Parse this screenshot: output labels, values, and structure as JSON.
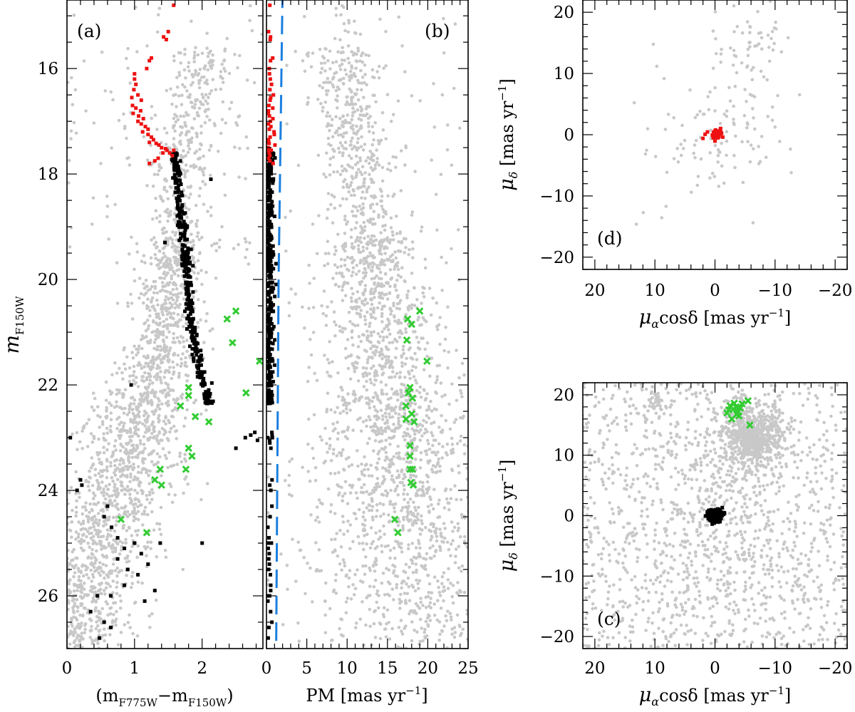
{
  "figure": {
    "colors": {
      "field": "#c8c8c8",
      "member_bright": "#ee1111",
      "member": "#000000",
      "selected": "#33cc33",
      "limit": "#1a7fe0"
    }
  },
  "chart_data": [
    {
      "id": "a",
      "type": "scatter",
      "tag": "(a)",
      "xlabel_main": "(m",
      "xlabel_sub1": "F775W",
      "xlabel_dash": "−m",
      "xlabel_sub2": "F150W",
      "xlabel_tail": ")",
      "ylabel_main": "m",
      "ylabel_sub": "F150W",
      "xlim": [
        0,
        2.9
      ],
      "ylim": [
        27,
        14.7
      ],
      "y_inverted": true,
      "xticks": [
        0,
        1,
        2
      ],
      "xtick_labels": [
        "0",
        "1",
        "2"
      ],
      "yticks": [
        16,
        18,
        20,
        22,
        24,
        26
      ],
      "ytick_labels": [
        "16",
        "18",
        "20",
        "22",
        "24",
        "26"
      ],
      "series": [
        {
          "role": "field",
          "color": "#c8c8c8",
          "points_approx": 2200,
          "segments": [
            [
              0.03,
              27.0,
              0.7,
              0.4
            ],
            [
              0.08,
              26.6,
              0.7,
              0.4
            ],
            [
              0.18,
              26.2,
              0.75,
              0.4
            ],
            [
              0.28,
              25.8,
              0.75,
              0.4
            ],
            [
              0.38,
              25.4,
              0.75,
              0.4
            ],
            [
              0.48,
              25.0,
              0.75,
              0.4
            ],
            [
              0.58,
              24.6,
              0.75,
              0.4
            ],
            [
              0.68,
              24.2,
              0.75,
              0.4
            ],
            [
              0.78,
              23.8,
              0.75,
              0.4
            ],
            [
              0.88,
              23.4,
              0.7,
              0.4
            ],
            [
              0.98,
              23.0,
              0.7,
              0.4
            ],
            [
              1.08,
              22.6,
              0.65,
              0.4
            ],
            [
              1.18,
              22.2,
              0.6,
              0.4
            ],
            [
              1.28,
              21.8,
              0.55,
              0.4
            ],
            [
              1.36,
              21.4,
              0.5,
              0.4
            ],
            [
              1.42,
              21.0,
              0.5,
              0.4
            ],
            [
              1.48,
              20.6,
              0.45,
              0.4
            ],
            [
              1.52,
              20.2,
              0.45,
              0.4
            ],
            [
              1.58,
              19.8,
              0.45,
              0.4
            ],
            [
              1.62,
              19.4,
              0.4,
              0.4
            ],
            [
              1.64,
              19.0,
              0.4,
              0.4
            ],
            [
              1.66,
              18.6,
              0.4,
              0.4
            ],
            [
              1.7,
              18.2,
              0.4,
              0.4
            ],
            [
              1.74,
              17.8,
              0.4,
              0.4
            ],
            [
              1.78,
              17.4,
              0.4,
              0.4
            ],
            [
              1.84,
              17.0,
              0.4,
              0.4
            ],
            [
              1.9,
              16.6,
              0.4,
              0.4
            ],
            [
              1.96,
              16.2,
              0.4,
              0.4
            ],
            [
              2.0,
              15.8,
              0.4,
              0.4
            ]
          ]
        },
        {
          "role": "members_bright",
          "color": "#ee1111",
          "points": [
            [
              1.58,
              14.8
            ],
            [
              1.5,
              15.3
            ],
            [
              1.43,
              15.4
            ],
            [
              1.47,
              15.45
            ],
            [
              1.25,
              15.8
            ],
            [
              1.22,
              15.85
            ],
            [
              1.18,
              16.0
            ],
            [
              1.0,
              16.1
            ],
            [
              1.0,
              16.2
            ],
            [
              1.02,
              16.3
            ],
            [
              0.99,
              16.4
            ],
            [
              1.05,
              16.5
            ],
            [
              0.96,
              16.55
            ],
            [
              1.1,
              16.6
            ],
            [
              0.97,
              16.7
            ],
            [
              1.02,
              16.75
            ],
            [
              1.09,
              16.8
            ],
            [
              0.98,
              16.85
            ],
            [
              1.06,
              16.9
            ],
            [
              1.13,
              16.95
            ],
            [
              1.05,
              17.0
            ],
            [
              1.1,
              17.05
            ],
            [
              1.16,
              17.1
            ],
            [
              1.2,
              17.15
            ],
            [
              1.12,
              17.2
            ],
            [
              1.2,
              17.25
            ],
            [
              1.25,
              17.3
            ],
            [
              1.28,
              17.35
            ],
            [
              1.22,
              17.4
            ],
            [
              1.32,
              17.42
            ],
            [
              1.36,
              17.45
            ],
            [
              1.4,
              17.5
            ],
            [
              1.46,
              17.52
            ],
            [
              1.48,
              17.55
            ],
            [
              1.42,
              17.6
            ],
            [
              1.52,
              17.6
            ],
            [
              1.56,
              17.65
            ],
            [
              1.35,
              17.7
            ],
            [
              1.3,
              17.75
            ],
            [
              1.22,
              17.8
            ],
            [
              1.58,
              17.55
            ]
          ]
        },
        {
          "role": "members",
          "color": "#000000",
          "points_approx": 330,
          "ridge": [
            [
              17.6,
              1.58
            ],
            [
              18.0,
              1.62
            ],
            [
              18.5,
              1.67
            ],
            [
              19.0,
              1.71
            ],
            [
              19.5,
              1.74
            ],
            [
              20.0,
              1.78
            ],
            [
              20.5,
              1.81
            ],
            [
              21.0,
              1.86
            ],
            [
              21.5,
              1.93
            ],
            [
              22.0,
              2.02
            ],
            [
              22.4,
              2.12
            ]
          ],
          "scatter_points": [
            [
              2.13,
              18.1
            ],
            [
              1.45,
              19.3
            ],
            [
              0.95,
              22.0
            ],
            [
              2.78,
              22.9
            ],
            [
              2.72,
              22.95
            ],
            [
              2.64,
              23.0
            ],
            [
              2.82,
              23.05
            ],
            [
              2.95,
              23.1
            ],
            [
              2.5,
              23.2
            ],
            [
              0.05,
              23.0
            ],
            [
              0.2,
              23.8
            ],
            [
              0.22,
              23.9
            ],
            [
              0.15,
              24.0
            ],
            [
              0.6,
              24.3
            ],
            [
              0.55,
              24.5
            ],
            [
              0.66,
              24.7
            ],
            [
              0.75,
              24.9
            ],
            [
              0.85,
              25.1
            ],
            [
              1.0,
              25.0
            ],
            [
              1.1,
              25.2
            ],
            [
              1.2,
              25.4
            ],
            [
              1.05,
              25.6
            ],
            [
              0.85,
              25.8
            ],
            [
              0.65,
              26.0
            ],
            [
              0.45,
              26.0
            ],
            [
              0.35,
              26.3
            ],
            [
              0.55,
              26.5
            ],
            [
              0.65,
              26.6
            ],
            [
              0.48,
              26.8
            ],
            [
              1.3,
              25.9
            ],
            [
              1.15,
              26.1
            ],
            [
              0.9,
              25.5
            ],
            [
              0.75,
              25.3
            ],
            [
              1.38,
              25.0
            ],
            [
              2.0,
              25.0
            ]
          ]
        },
        {
          "role": "selected",
          "color": "#33cc33",
          "points": [
            [
              2.5,
              20.6
            ],
            [
              2.37,
              20.75
            ],
            [
              2.45,
              21.2
            ],
            [
              2.85,
              21.55
            ],
            [
              1.8,
              22.05
            ],
            [
              1.8,
              22.2
            ],
            [
              2.65,
              22.15
            ],
            [
              1.68,
              22.4
            ],
            [
              1.9,
              22.6
            ],
            [
              2.1,
              22.7
            ],
            [
              1.8,
              23.2
            ],
            [
              1.85,
              23.35
            ],
            [
              1.76,
              23.6
            ],
            [
              1.38,
              23.6
            ],
            [
              1.3,
              23.8
            ],
            [
              1.4,
              23.9
            ],
            [
              0.8,
              24.55
            ],
            [
              1.18,
              24.8
            ]
          ]
        }
      ]
    },
    {
      "id": "b",
      "type": "scatter",
      "tag": "(b)",
      "xlabel_main": "PM [mas yr",
      "xlabel_sup": "−1",
      "xlabel_tail": "]",
      "xlim": [
        0,
        25
      ],
      "ylim": [
        27,
        14.7
      ],
      "y_inverted": true,
      "xticks": [
        0,
        5,
        10,
        15,
        20,
        25
      ],
      "xtick_labels": [
        "0",
        "5",
        "10",
        "15",
        "20",
        "25"
      ],
      "limit_line": {
        "color": "#1a7fe0",
        "style": "dashed",
        "points": [
          [
            2.0,
            14.5
          ],
          [
            1.5,
            20.0
          ],
          [
            1.2,
            27.0
          ]
        ]
      },
      "series": [
        {
          "role": "field",
          "color": "#c8c8c8",
          "points_approx": 2500
        },
        {
          "role": "members_bright",
          "color": "#ee1111",
          "points_approx": 41
        },
        {
          "role": "members",
          "color": "#000000",
          "points_approx": 330
        },
        {
          "role": "selected",
          "color": "#33cc33",
          "points": [
            [
              19.0,
              20.6
            ],
            [
              17.5,
              20.75
            ],
            [
              18.0,
              20.85
            ],
            [
              17.4,
              21.15
            ],
            [
              19.9,
              21.55
            ],
            [
              17.8,
              22.05
            ],
            [
              17.6,
              22.15
            ],
            [
              18.1,
              22.25
            ],
            [
              17.3,
              22.4
            ],
            [
              18.0,
              22.55
            ],
            [
              17.3,
              22.65
            ],
            [
              18.3,
              22.7
            ],
            [
              17.8,
              23.15
            ],
            [
              17.8,
              23.35
            ],
            [
              17.8,
              23.6
            ],
            [
              18.1,
              23.6
            ],
            [
              17.9,
              23.85
            ],
            [
              18.2,
              23.9
            ],
            [
              15.9,
              24.55
            ],
            [
              16.3,
              24.8
            ]
          ]
        }
      ]
    },
    {
      "id": "d",
      "type": "scatter",
      "tag": "(d)",
      "xlabel_main": "μ",
      "xlabel_sub": "α",
      "xlabel_mid": "cosδ [mas yr",
      "xlabel_sup": "−1",
      "xlabel_tail": "]",
      "ylabel_main": "μ",
      "ylabel_sub": "δ",
      "ylabel_mid": " [mas yr",
      "ylabel_sup": "−1",
      "ylabel_tail": "]",
      "xlim": [
        22,
        -22
      ],
      "x_inverted": true,
      "ylim": [
        -22,
        22
      ],
      "xticks": [
        20,
        10,
        0,
        -10,
        -20
      ],
      "xtick_labels": [
        "20",
        "10",
        "0",
        "−10",
        "−20"
      ],
      "yticks": [
        20,
        10,
        0,
        -10,
        -20
      ],
      "ytick_labels": [
        "20",
        "10",
        "0",
        "−10",
        "−20"
      ],
      "series": [
        {
          "role": "field",
          "color": "#c8c8c8",
          "points_approx": 160,
          "centers": [
            [
              -6,
              13,
              3,
              5
            ],
            [
              0,
              0,
              6,
              5
            ]
          ]
        },
        {
          "role": "members_bright",
          "color": "#ee1111",
          "points_approx": 40,
          "center": [
            0,
            0
          ],
          "spread": 0.9
        }
      ]
    },
    {
      "id": "c",
      "type": "scatter",
      "tag": "(c)",
      "xlabel_main": "μ",
      "xlabel_sub": "α",
      "xlabel_mid": "cosδ [mas yr",
      "xlabel_sup": "−1",
      "xlabel_tail": "]",
      "ylabel_main": "μ",
      "ylabel_sub": "δ",
      "ylabel_mid": " [mas yr",
      "ylabel_sup": "−1",
      "ylabel_tail": "]",
      "xlim": [
        22,
        -22
      ],
      "x_inverted": true,
      "ylim": [
        -22,
        22
      ],
      "xticks": [
        20,
        10,
        0,
        -10,
        -20
      ],
      "xtick_labels": [
        "20",
        "10",
        "0",
        "−10",
        "−20"
      ],
      "yticks": [
        20,
        10,
        0,
        -10,
        -20
      ],
      "ytick_labels": [
        "20",
        "10",
        "0",
        "−10",
        "−20"
      ],
      "series": [
        {
          "role": "field",
          "color": "#c8c8c8",
          "points_approx": 2600,
          "clumps": [
            [
              -6,
              13,
              2.5,
              2.5
            ],
            [
              10,
              19,
              0.8,
              0.8
            ]
          ]
        },
        {
          "role": "members",
          "color": "#000000",
          "points_approx": 330,
          "center": [
            0,
            0
          ],
          "spread": 0.6
        },
        {
          "role": "selected",
          "color": "#33cc33",
          "points": [
            [
              -5.5,
              19.0
            ],
            [
              -4.5,
              18.5
            ],
            [
              -3.5,
              18.0
            ],
            [
              -2.5,
              18.2
            ],
            [
              -3.0,
              17.6
            ],
            [
              -2.0,
              17.0
            ],
            [
              -3.8,
              17.2
            ],
            [
              -4.0,
              16.5
            ],
            [
              -2.8,
              16.0
            ],
            [
              -5.8,
              15.0
            ],
            [
              -3.2,
              18.6
            ],
            [
              -4.2,
              17.8
            ],
            [
              -2.3,
              17.5
            ],
            [
              -3.6,
              16.8
            ]
          ]
        }
      ]
    }
  ]
}
